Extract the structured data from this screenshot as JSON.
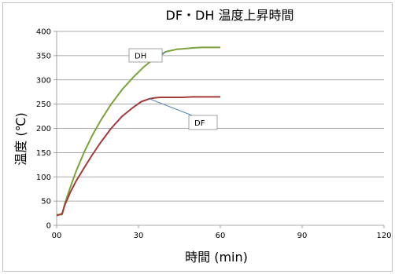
{
  "chart_data": {
    "type": "line",
    "title": "DF・DH 温度上昇時間",
    "xlabel": "時間 (min)",
    "ylabel": "温度 (℃)",
    "xlim": [
      0,
      120
    ],
    "ylim": [
      0,
      400
    ],
    "x_ticks": [
      0,
      30,
      60,
      90,
      120
    ],
    "x_tick_labels": [
      "00",
      "30",
      "60",
      "90",
      "120"
    ],
    "y_ticks": [
      0,
      50,
      100,
      150,
      200,
      250,
      300,
      350,
      400
    ],
    "grid": true,
    "legend": "none",
    "series": [
      {
        "name": "DH",
        "color": "#7ba33c",
        "x": [
          0,
          1,
          2,
          3,
          5,
          7,
          10,
          13,
          16,
          20,
          24,
          28,
          32,
          36,
          40,
          44,
          46,
          48,
          50,
          53,
          56,
          60
        ],
        "y": [
          22,
          22,
          22,
          45,
          78,
          110,
          150,
          185,
          215,
          250,
          280,
          305,
          327,
          345,
          358,
          363,
          364,
          365,
          366,
          367,
          367,
          367
        ]
      },
      {
        "name": "DF",
        "color": "#a33a3a",
        "x": [
          0,
          1,
          2,
          3,
          5,
          7,
          10,
          13,
          16,
          20,
          24,
          28,
          31,
          34,
          36,
          38,
          42,
          46,
          50,
          55,
          60
        ],
        "y": [
          20,
          22,
          24,
          42,
          68,
          90,
          118,
          145,
          170,
          200,
          225,
          243,
          255,
          261,
          263,
          264,
          264,
          264,
          265,
          265,
          265
        ]
      }
    ],
    "annotations": [
      {
        "text": "DH",
        "series": "DH"
      },
      {
        "text": "DF",
        "series": "DF"
      }
    ]
  }
}
